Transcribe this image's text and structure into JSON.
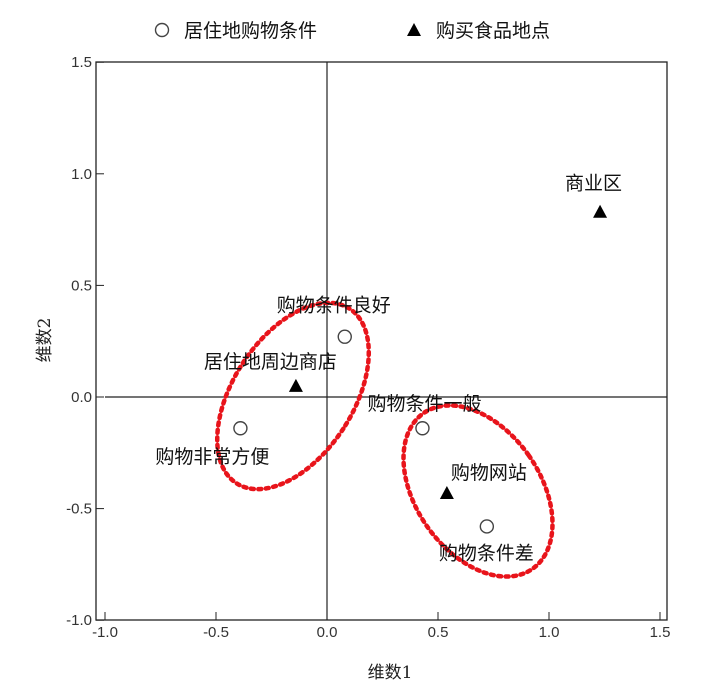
{
  "chart_data": {
    "type": "scatter",
    "xlabel": "维数1",
    "ylabel": "维数2",
    "xlim": [
      -1.0,
      1.5
    ],
    "ylim": [
      -1.0,
      1.5
    ],
    "xticks": [
      "-1.0",
      "-0.5",
      "0.0",
      "0.5",
      "1.0",
      "1.5"
    ],
    "yticks": [
      "-1.0",
      "-0.5",
      "0.0",
      "0.5",
      "1.0",
      "1.5"
    ],
    "grid": false,
    "legend_position": "top",
    "series": [
      {
        "name": "居住地购物条件",
        "marker": "open-circle",
        "color": "#000000",
        "points": [
          {
            "label": "购物条件良好",
            "x": 0.08,
            "y": 0.27
          },
          {
            "label": "购物非常方便",
            "x": -0.39,
            "y": -0.14
          },
          {
            "label": "购物条件一般",
            "x": 0.43,
            "y": -0.14
          },
          {
            "label": "购物条件差",
            "x": 0.72,
            "y": -0.58
          }
        ]
      },
      {
        "name": "购买食品地点",
        "marker": "filled-triangle",
        "color": "#000000",
        "points": [
          {
            "label": "居住地周边商店",
            "x": -0.14,
            "y": 0.05
          },
          {
            "label": "购物网站",
            "x": 0.54,
            "y": -0.43
          },
          {
            "label": "商业区",
            "x": 1.23,
            "y": 0.83
          }
        ]
      }
    ],
    "annotations": {
      "type": "dotted-ellipse",
      "color": "#e8141b",
      "count": 2
    }
  }
}
